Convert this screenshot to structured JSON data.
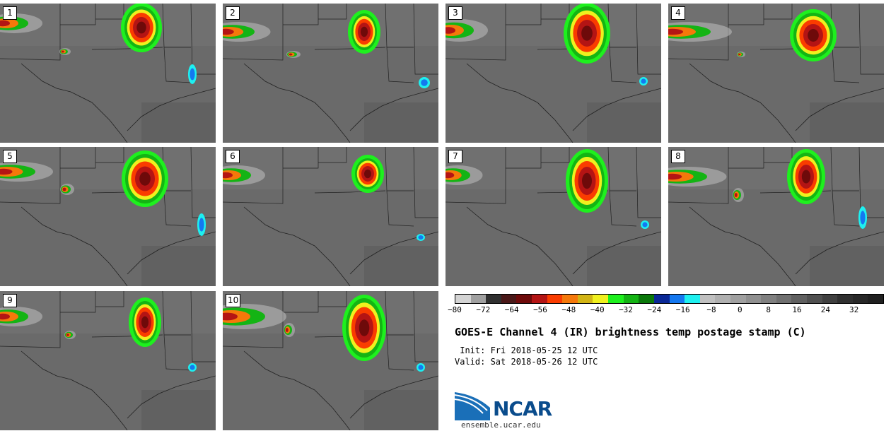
{
  "panels": [
    {
      "label": "1"
    },
    {
      "label": "2"
    },
    {
      "label": "3"
    },
    {
      "label": "4"
    },
    {
      "label": "5"
    },
    {
      "label": "6"
    },
    {
      "label": "7"
    },
    {
      "label": "8"
    },
    {
      "label": "9"
    },
    {
      "label": "10"
    }
  ],
  "colorbar": {
    "colors": [
      "#d4d4d4",
      "#a0a0a0",
      "#303030",
      "#4a1818",
      "#6e0a0a",
      "#b41414",
      "#fa3c00",
      "#f5780a",
      "#d2b414",
      "#f0f01e",
      "#1ef01e",
      "#14b414",
      "#0a780a",
      "#0a2896",
      "#1478f0",
      "#1ef0f0",
      "#c0c0c0",
      "#b0b0b0",
      "#a0a0a0",
      "#909090",
      "#808080",
      "#707070",
      "#606060",
      "#505050",
      "#404040",
      "#303030",
      "#282828",
      "#202020"
    ],
    "tick_labels": [
      "−80",
      "−72",
      "−64",
      "−56",
      "−48",
      "−40",
      "−32",
      "−24",
      "−16",
      "−8",
      "0",
      "8",
      "16",
      "24",
      "32"
    ],
    "tick_values": [
      -80,
      -72,
      -64,
      -56,
      -48,
      -40,
      -32,
      -24,
      -16,
      -8,
      0,
      8,
      16,
      24,
      32
    ],
    "range": [
      -80,
      40
    ]
  },
  "title": "GOES-E Channel 4 (IR) brightness temp postage stamp (C)",
  "init": " Init: Fri 2018-05-25 12 UTC",
  "valid": "Valid: Sat 2018-05-26 12 UTC",
  "logo": {
    "text": "NCAR",
    "site": "ensemble.ucar.edu",
    "color": "#0a4c8c"
  }
}
